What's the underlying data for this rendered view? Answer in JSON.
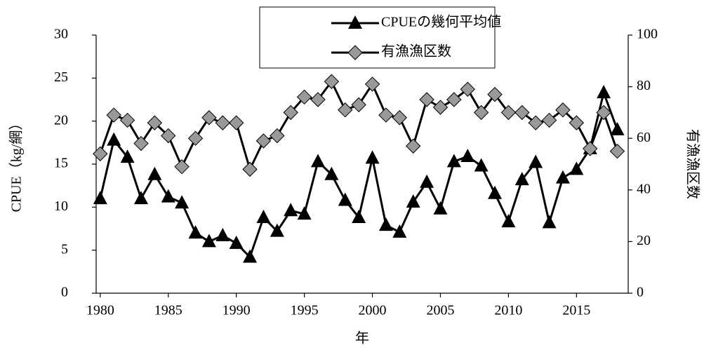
{
  "chart_data": {
    "type": "line",
    "x": [
      1980,
      1981,
      1982,
      1983,
      1984,
      1985,
      1986,
      1987,
      1988,
      1989,
      1990,
      1991,
      1992,
      1993,
      1994,
      1995,
      1996,
      1997,
      1998,
      1999,
      2000,
      2001,
      2002,
      2003,
      2004,
      2005,
      2006,
      2007,
      2008,
      2009,
      2010,
      2011,
      2012,
      2013,
      2014,
      2015,
      2016,
      2017,
      2018
    ],
    "xlim": [
      1979.7,
      2018.8
    ],
    "xticks": [
      1980,
      1985,
      1990,
      1995,
      2000,
      2005,
      2010,
      2015
    ],
    "x_label": "年",
    "y_label": "CPUE（kg/網）",
    "y2_label": "有漁漁区数",
    "ylim": [
      0,
      30
    ],
    "yticks": [
      0,
      5,
      10,
      15,
      20,
      25,
      30
    ],
    "y2lim": [
      0,
      100
    ],
    "y2ticks": [
      0,
      20,
      40,
      60,
      80,
      100
    ],
    "grid": false,
    "legend": "top",
    "series": [
      {
        "name": "CPUEの幾何平均値",
        "color": "#000000",
        "marker": "triangle",
        "values": [
          11.0,
          17.8,
          15.8,
          11.0,
          13.8,
          11.2,
          10.5,
          7.0,
          6.0,
          6.7,
          5.8,
          4.2,
          8.8,
          7.2,
          9.6,
          9.2,
          15.3,
          13.8,
          10.8,
          8.8,
          15.7,
          7.9,
          7.1,
          10.6,
          12.9,
          9.8,
          15.3,
          15.9,
          14.8,
          11.6,
          8.3,
          13.2,
          15.2,
          8.2,
          13.4,
          14.4,
          16.8,
          23.3,
          19.0
        ]
      },
      {
        "name": "有漁漁区数",
        "color": "#999999",
        "marker": "diamond",
        "axis": "y2",
        "values": [
          54,
          69,
          67,
          58,
          66,
          61,
          49,
          60,
          68,
          66,
          66,
          48,
          59,
          61,
          70,
          76,
          75,
          82,
          71,
          73,
          81,
          69,
          68,
          57,
          75,
          72,
          75,
          79,
          70,
          77,
          70,
          70,
          66,
          67,
          71,
          66,
          56,
          70,
          55
        ]
      }
    ]
  }
}
